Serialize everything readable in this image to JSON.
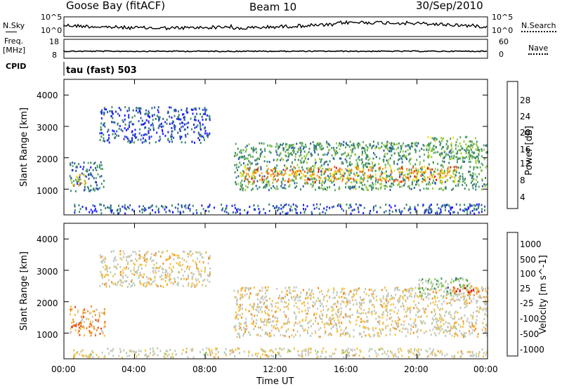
{
  "header": {
    "title": "Goose Bay (fitACF)",
    "beam": "Beam 10",
    "date": "30/Sep/2010"
  },
  "left_labels": {
    "nsky": "N.Sky",
    "nsky_ticks": [
      "10^5",
      "10^0"
    ],
    "freq_line1": "Freq.",
    "freq_line2": "[MHz]",
    "freq_ticks": [
      "18",
      "8"
    ],
    "cpid": "CPID",
    "cpid_value": "tau (fast) 503"
  },
  "right_labels": {
    "nsearch": "N.Search",
    "nsearch_ticks": [
      "10^5",
      "10^0"
    ],
    "nave": "Nave",
    "nave_ticks": [
      "60",
      "0"
    ]
  },
  "colors": {
    "power": [
      "#1a1aff",
      "#2b5aa8",
      "#3a8a6a",
      "#58a860",
      "#9ccc3c",
      "#f0e020",
      "#f5a020",
      "#f06010",
      "#e01010"
    ],
    "velocity": [
      "#e01010",
      "#ee5010",
      "#f59020",
      "#f5c040",
      "#c8c8c0",
      "#b8c8b0",
      "#78c840",
      "#3a9060",
      "#2040a0"
    ]
  },
  "chart_data": [
    {
      "type": "heatmap",
      "name": "power",
      "ylabel": "Slant Range [km]",
      "xlabel": "",
      "xticks": [
        "00:00",
        "04:00",
        "08:00",
        "12:00",
        "16:00",
        "20:00",
        "00:00"
      ],
      "yticks": [
        "1000",
        "2000",
        "3000",
        "4000"
      ],
      "ylim": [
        180,
        4500
      ],
      "xlim_hours": [
        0,
        24
      ],
      "colorbar": {
        "label": "Power [dB]",
        "ticks": [
          "4",
          "8",
          "12",
          "16",
          "20",
          "24",
          "28"
        ],
        "range": [
          0,
          30
        ]
      },
      "regions": [
        {
          "t0": 0.3,
          "t1": 2.3,
          "r0": 950,
          "r1": 1900,
          "level": 0.25
        },
        {
          "t0": 0.3,
          "t1": 1.2,
          "r0": 1150,
          "r1": 1500,
          "level": 0.6
        },
        {
          "t0": 2.0,
          "t1": 8.3,
          "r0": 2500,
          "r1": 3650,
          "level": 0.15
        },
        {
          "t0": 0.5,
          "t1": 24.0,
          "r0": 250,
          "r1": 550,
          "level": 0.15
        },
        {
          "t0": 9.6,
          "t1": 24.0,
          "r0": 1000,
          "r1": 2500,
          "level": 0.35
        },
        {
          "t0": 10.0,
          "t1": 22.5,
          "r0": 1250,
          "r1": 1750,
          "level": 0.75
        },
        {
          "t0": 12.0,
          "t1": 20.0,
          "r0": 2300,
          "r1": 2550,
          "level": 0.3
        },
        {
          "t0": 20.5,
          "t1": 23.5,
          "r0": 2000,
          "r1": 2700,
          "level": 0.4
        }
      ]
    },
    {
      "type": "heatmap",
      "name": "velocity",
      "ylabel": "Slant Range [km]",
      "xlabel": "Time UT",
      "xticks": [
        "00:00",
        "04:00",
        "08:00",
        "12:00",
        "16:00",
        "20:00",
        "00:00"
      ],
      "yticks": [
        "1000",
        "2000",
        "3000",
        "4000"
      ],
      "ylim": [
        180,
        4500
      ],
      "xlim_hours": [
        0,
        24
      ],
      "colorbar": {
        "label": "Velocity [m s^-1]",
        "ticks": [
          "1000",
          "500",
          "100",
          "25",
          "-25",
          "-100",
          "-500",
          "-1000"
        ]
      },
      "regions": [
        {
          "t0": 0.3,
          "t1": 2.3,
          "r0": 950,
          "r1": 1900,
          "level": 0.35
        },
        {
          "t0": 0.3,
          "t1": 1.0,
          "r0": 1100,
          "r1": 1400,
          "level": 0.25
        },
        {
          "t0": 2.0,
          "t1": 8.3,
          "r0": 2500,
          "r1": 3650,
          "level": 0.48
        },
        {
          "t0": 0.5,
          "t1": 24.0,
          "r0": 250,
          "r1": 550,
          "level": 0.5
        },
        {
          "t0": 9.6,
          "t1": 24.0,
          "r0": 900,
          "r1": 2500,
          "level": 0.47
        },
        {
          "t0": 20.0,
          "t1": 23.0,
          "r0": 2200,
          "r1": 2800,
          "level": 0.72
        },
        {
          "t0": 22.0,
          "t1": 23.5,
          "r0": 2300,
          "r1": 2600,
          "level": 0.2
        }
      ]
    }
  ]
}
